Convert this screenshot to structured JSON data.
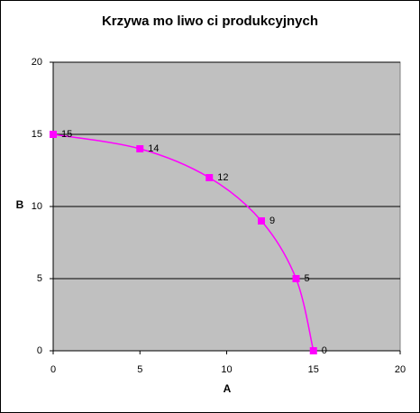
{
  "chart_data": {
    "type": "scatter",
    "title": "Krzywa mo  liwo  ci produkcyjnych",
    "x_label": "A",
    "y_label": "B",
    "x": [
      0,
      5,
      9,
      12,
      14,
      15
    ],
    "values": [
      15,
      14,
      12,
      9,
      5,
      0
    ],
    "color": "#ff00ff",
    "plot_color": "#c0c0c0",
    "smooth": true,
    "grid": true,
    "data_labels": true,
    "xlim": [
      0,
      20
    ],
    "xticks": [
      0,
      5,
      10,
      15,
      20
    ],
    "ylim": [
      0,
      20
    ],
    "yticks": [
      0,
      5,
      10,
      15,
      20
    ]
  }
}
